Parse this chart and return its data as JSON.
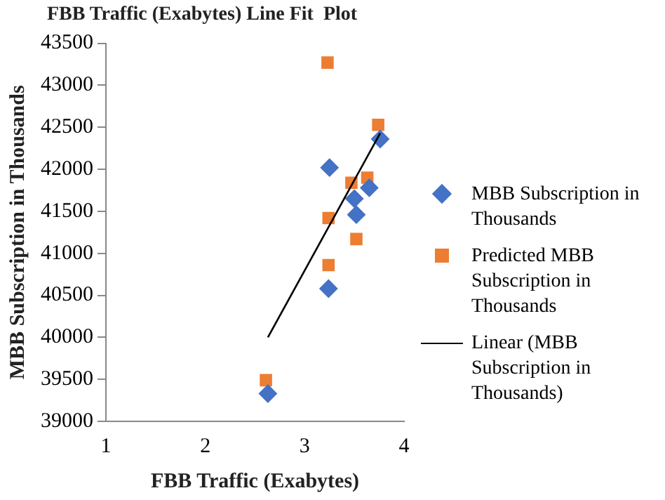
{
  "chart_data": {
    "type": "scatter",
    "title": "FBB Traffic (Exabytes) Line Fit  Plot",
    "xlabel": "FBB Traffic (Exabytes)",
    "ylabel": "MBB Subscription in Thousands",
    "xlim": [
      1,
      4
    ],
    "xticks": [
      1,
      2,
      3,
      4
    ],
    "ylim": [
      39000,
      43500
    ],
    "yticks": [
      39000,
      39500,
      40000,
      40500,
      41000,
      41500,
      42000,
      42500,
      43000,
      43500
    ],
    "grid": false,
    "legend": "right",
    "series": [
      {
        "name": "MBB Subscription in Thousands",
        "type": "scatter",
        "marker": "diamond",
        "color": "#4472c4",
        "x": [
          2.63,
          3.25,
          3.24,
          3.5,
          3.52,
          3.65,
          3.76
        ],
        "values": [
          39330,
          42020,
          40580,
          41650,
          41460,
          41780,
          42360
        ]
      },
      {
        "name": "Predicted MBB Subscription in Thousands",
        "type": "scatter",
        "marker": "square",
        "color": "#ed7d31",
        "x": [
          2.61,
          3.23,
          3.74,
          3.24,
          3.24,
          3.52,
          3.47,
          3.63
        ],
        "values": [
          39490,
          43270,
          42530,
          41420,
          40860,
          41170,
          41840,
          41900
        ]
      },
      {
        "name": "Linear (MBB Subscription in Thousands)",
        "type": "line",
        "marker": "none",
        "line_style": "solid",
        "color": "#000000",
        "x": [
          2.63,
          3.76
        ],
        "values": [
          40000,
          42430
        ]
      }
    ]
  }
}
